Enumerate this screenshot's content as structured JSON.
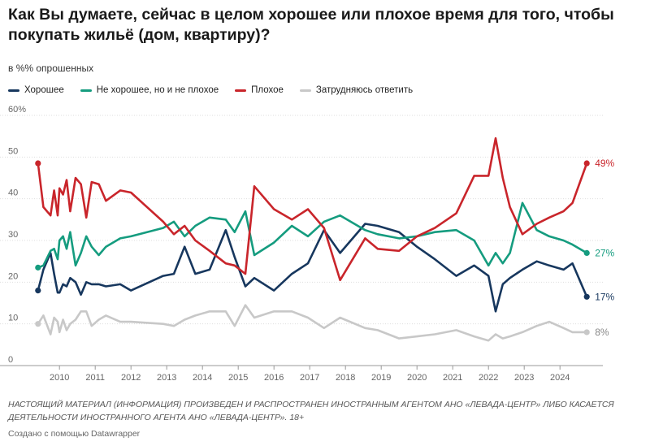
{
  "header": {
    "title": "Как Вы думаете, сейчас в целом хорошее или плохое время для того, чтобы покупать жильё (дом, квартиру)?",
    "subtitle": "в %% опрошенных"
  },
  "legend": [
    {
      "label": "Хорошее",
      "color": "#17375e"
    },
    {
      "label": "Не хорошее, но и не плохое",
      "color": "#159c7f"
    },
    {
      "label": "Плохое",
      "color": "#c9252b"
    },
    {
      "label": "Затрудняюсь ответить",
      "color": "#c8c8c8"
    }
  ],
  "footer": {
    "note": "НАСТОЯЩИЙ МАТЕРИАЛ (ИНФОРМАЦИЯ) ПРОИЗВЕДЕН И РАСПРОСТРАНЕН ИНОСТРАННЫМ АГЕНТОМ АНО «ЛЕВАДА-ЦЕНТР» ЛИБО КАСАЕТСЯ ДЕЯТЕЛЬНОСТИ ИНОСТРАННОГО АГЕНТА АНО «ЛЕВАДА-ЦЕНТР». 18+",
    "credit": "Создано с помощью Datawrapper"
  },
  "chart_data": {
    "type": "line",
    "ylim": [
      0,
      60
    ],
    "xlim": [
      2009.2,
      2025.2
    ],
    "y_ticks": [
      0,
      10,
      20,
      30,
      40,
      50,
      60
    ],
    "y_tick_labels": [
      "0",
      "10",
      "20",
      "30",
      "40",
      "50",
      "60%"
    ],
    "x_ticks": [
      2010,
      2011,
      2012,
      2013,
      2014,
      2015,
      2016,
      2017,
      2018,
      2019,
      2020,
      2021,
      2022,
      2023,
      2024
    ],
    "x_tick_labels": [
      "2010",
      "2011",
      "2012",
      "2013",
      "2014",
      "2015",
      "2016",
      "2017",
      "2018",
      "2019",
      "2020",
      "2021",
      "2022",
      "2023",
      "2024"
    ],
    "grid": true,
    "series": [
      {
        "name": "Хорошее",
        "color": "#17375e",
        "end_label": "17%",
        "x": [
          2009.4,
          2009.55,
          2009.75,
          2009.85,
          2009.95,
          2010.0,
          2010.1,
          2010.2,
          2010.3,
          2010.45,
          2010.6,
          2010.75,
          2010.9,
          2011.1,
          2011.3,
          2011.7,
          2012.0,
          2012.9,
          2013.2,
          2013.5,
          2013.8,
          2014.2,
          2014.65,
          2014.9,
          2015.2,
          2015.45,
          2016.0,
          2016.5,
          2016.95,
          2017.4,
          2017.85,
          2018.55,
          2018.9,
          2019.5,
          2020.0,
          2020.5,
          2021.1,
          2021.6,
          2022.0,
          2022.2,
          2022.4,
          2022.6,
          2022.95,
          2023.35,
          2023.7,
          2024.1,
          2024.35,
          2024.75
        ],
        "y": [
          18,
          23,
          27,
          22,
          17.5,
          17.5,
          19.5,
          19,
          21,
          20,
          17,
          20,
          19.5,
          19.5,
          19,
          19.5,
          18,
          21.5,
          22,
          28.5,
          22,
          23,
          32.5,
          26,
          19,
          21,
          18,
          22,
          24.5,
          32.5,
          27,
          34,
          33.5,
          32,
          28.5,
          25.5,
          21.5,
          24,
          21.5,
          13,
          19.5,
          21,
          23,
          25,
          24,
          23,
          24.5,
          16.5
        ]
      },
      {
        "name": "Не хорошее, но и не плохое",
        "color": "#159c7f",
        "end_label": "27%",
        "x": [
          2009.4,
          2009.55,
          2009.75,
          2009.85,
          2009.95,
          2010.0,
          2010.1,
          2010.2,
          2010.3,
          2010.45,
          2010.6,
          2010.75,
          2010.9,
          2011.1,
          2011.3,
          2011.7,
          2012.0,
          2012.9,
          2013.2,
          2013.5,
          2013.8,
          2014.2,
          2014.65,
          2014.9,
          2015.2,
          2015.45,
          2016.0,
          2016.5,
          2016.95,
          2017.4,
          2017.85,
          2018.55,
          2018.9,
          2019.5,
          2020.0,
          2020.5,
          2021.1,
          2021.6,
          2022.0,
          2022.2,
          2022.4,
          2022.6,
          2022.95,
          2023.35,
          2023.7,
          2024.1,
          2024.35,
          2024.75
        ],
        "y": [
          23.5,
          24,
          27.5,
          28,
          25.5,
          30,
          31,
          28,
          32,
          24,
          27,
          31,
          28.5,
          26.5,
          28.5,
          30.5,
          31,
          33,
          34.5,
          31,
          33.5,
          35.5,
          35,
          32,
          37,
          26.5,
          29.5,
          33.5,
          31,
          34.5,
          36,
          32.5,
          31.5,
          30.5,
          31,
          32,
          32.5,
          30,
          24,
          27,
          24.5,
          27,
          39,
          32.5,
          31,
          30,
          29,
          27
        ]
      },
      {
        "name": "Плохое",
        "color": "#c9252b",
        "end_label": "49%",
        "x": [
          2009.4,
          2009.55,
          2009.75,
          2009.85,
          2009.95,
          2010.0,
          2010.1,
          2010.2,
          2010.3,
          2010.45,
          2010.6,
          2010.75,
          2010.9,
          2011.1,
          2011.3,
          2011.7,
          2012.0,
          2012.9,
          2013.2,
          2013.5,
          2013.8,
          2014.2,
          2014.65,
          2014.9,
          2015.2,
          2015.45,
          2016.0,
          2016.5,
          2016.95,
          2017.4,
          2017.85,
          2018.55,
          2018.9,
          2019.5,
          2020.0,
          2020.5,
          2021.1,
          2021.6,
          2022.0,
          2022.2,
          2022.4,
          2022.6,
          2022.95,
          2023.35,
          2023.7,
          2024.1,
          2024.35,
          2024.75
        ],
        "y": [
          48.5,
          38,
          36,
          42,
          36,
          42.5,
          41,
          44.5,
          37,
          45,
          43.5,
          35.5,
          44,
          43.5,
          39.5,
          42,
          41.5,
          34.5,
          31.5,
          33.5,
          30,
          27.5,
          24.5,
          24,
          22,
          43,
          37.5,
          35,
          37.5,
          33,
          20.5,
          30.5,
          28,
          27.5,
          31,
          33,
          36.5,
          45.5,
          45.5,
          54.5,
          45,
          38,
          31.5,
          34,
          35.5,
          37,
          39,
          48.5
        ]
      },
      {
        "name": "Затрудняюсь ответить",
        "color": "#c8c8c8",
        "end_label": "8%",
        "x": [
          2009.4,
          2009.55,
          2009.75,
          2009.85,
          2009.95,
          2010.0,
          2010.1,
          2010.2,
          2010.3,
          2010.45,
          2010.6,
          2010.75,
          2010.9,
          2011.1,
          2011.3,
          2011.7,
          2012.0,
          2012.9,
          2013.2,
          2013.5,
          2013.8,
          2014.2,
          2014.65,
          2014.9,
          2015.2,
          2015.45,
          2016.0,
          2016.5,
          2016.95,
          2017.4,
          2017.85,
          2018.55,
          2018.9,
          2019.5,
          2020.0,
          2020.5,
          2021.1,
          2021.6,
          2022.0,
          2022.2,
          2022.4,
          2022.6,
          2022.95,
          2023.35,
          2023.7,
          2024.1,
          2024.35,
          2024.75
        ],
        "y": [
          10,
          12,
          7.5,
          11.5,
          10.5,
          8,
          11,
          8.5,
          10,
          11,
          13,
          13,
          9.5,
          11,
          12,
          10.5,
          10.5,
          10,
          9.5,
          11,
          12,
          13,
          13,
          9.5,
          14.5,
          11.5,
          13,
          13,
          11.5,
          9,
          11.5,
          9,
          8.5,
          6.5,
          7,
          7.5,
          8.5,
          7,
          6,
          7.5,
          6.5,
          7,
          8,
          9.5,
          10.5,
          9,
          8,
          8
        ]
      }
    ]
  }
}
